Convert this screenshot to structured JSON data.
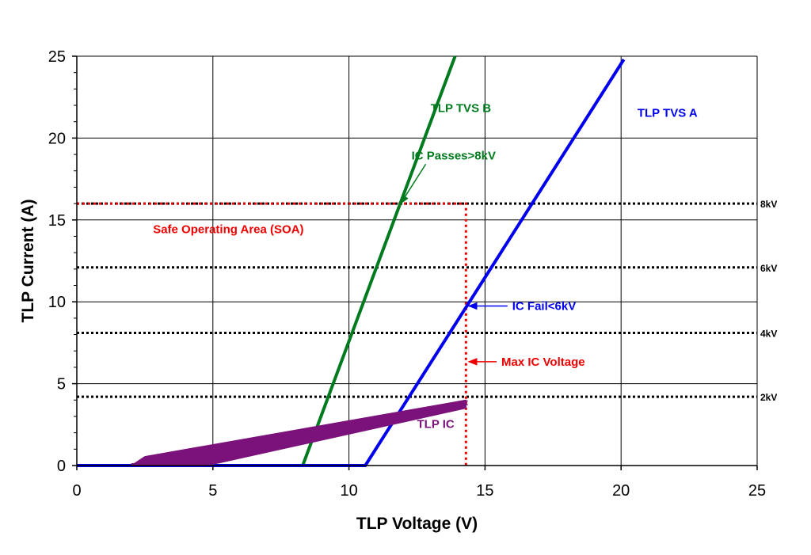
{
  "chart_data": {
    "type": "line",
    "xlabel": "TLP Voltage (V)",
    "ylabel": "TLP Current (A)",
    "xlim": [
      0,
      25
    ],
    "ylim": [
      0,
      25
    ],
    "xticks": [
      0,
      5,
      10,
      15,
      20,
      25
    ],
    "yticks": [
      0,
      5,
      10,
      15,
      20,
      25
    ],
    "grid": true,
    "series": [
      {
        "name": "TLP TVS B",
        "color": "#007a1e",
        "x": [
          0,
          8.3,
          13.9
        ],
        "y": [
          0,
          0,
          25
        ]
      },
      {
        "name": "TLP TVS A",
        "color": "#0000ee",
        "x": [
          0,
          10.6,
          20.1
        ],
        "y": [
          0,
          0,
          24.8
        ]
      },
      {
        "name": "TLP IC",
        "color": "#7b127b",
        "x": [
          2.5,
          14.3
        ],
        "y": [
          0.3,
          3.9
        ]
      }
    ],
    "reference_lines": [
      {
        "label": "8kV",
        "y": 16.0
      },
      {
        "label": "6kV",
        "y": 12.1
      },
      {
        "label": "4kV",
        "y": 8.1
      },
      {
        "label": "2kV",
        "y": 4.2
      }
    ],
    "soa": {
      "label": "Safe Operating Area (SOA)",
      "max_voltage": 14.3,
      "max_current": 16.0,
      "color": "#ee0000"
    },
    "annotations": [
      {
        "text": "IC Passes>8kV",
        "color": "#007a1e",
        "x": 12.3,
        "y": 18.7,
        "point": [
          11.9,
          16.0
        ]
      },
      {
        "text": "IC Fail<6kV",
        "color": "#0000ee",
        "x": 16.0,
        "y": 9.5,
        "point": [
          14.4,
          9.5
        ]
      },
      {
        "text": "Max IC Voltage",
        "color": "#ee0000",
        "x": 15.6,
        "y": 6.1,
        "point": [
          14.4,
          6.1
        ]
      }
    ]
  }
}
